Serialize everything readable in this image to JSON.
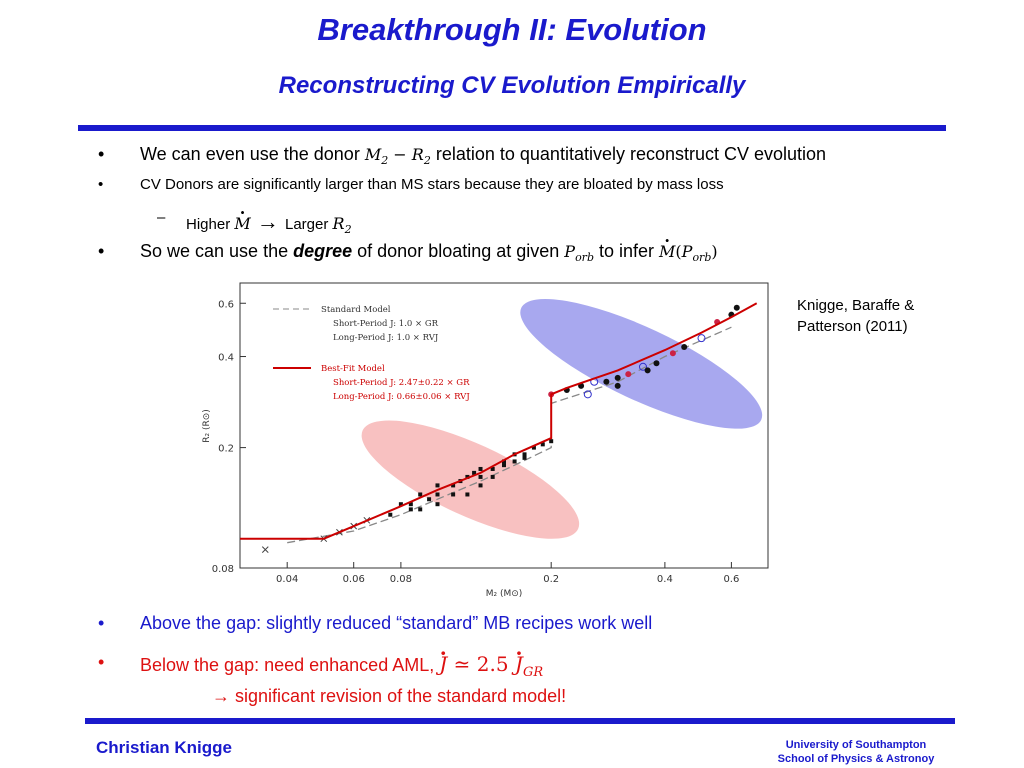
{
  "header": {
    "title": "Breakthrough II: Evolution",
    "subtitle": "Reconstructing CV Evolution Empirically"
  },
  "bullets": {
    "b1": {
      "marker": "•",
      "pre": "We can even use the donor ",
      "math_m": "M",
      "sub2": "2",
      "minus": " − ",
      "math_r": "R",
      "post": " relation to quantitatively reconstruct CV evolution"
    },
    "b2": {
      "marker": "•",
      "text": "CV Donors are significantly larger than MS stars because they are bloated by mass loss"
    },
    "b3": {
      "marker": "–",
      "pre": "Higher ",
      "math_mdot": "M",
      "arrow": " → ",
      "mid": "Larger ",
      "math_r": "R",
      "sub2": "2"
    },
    "b4": {
      "marker": "•",
      "pre": "So we can use the ",
      "emph": "degree",
      "mid": " of donor bloating at given ",
      "math_p": "P",
      "sub_orb": "orb",
      "post": " to infer ",
      "math_mdot": "M",
      "paren_open": "(",
      "paren_close": ")"
    },
    "b5": {
      "marker": "•",
      "text": "Above the gap: slightly reduced “standard” MB recipes work well"
    },
    "b6": {
      "marker": "•",
      "pre": "Below the gap: need enhanced AML, ",
      "math_j": "J",
      "approx": " ≃ 2.5 ",
      "sub_gr": "GR"
    },
    "b7": {
      "arrow": "→",
      "text": " significant revision of the standard model!"
    }
  },
  "reference": {
    "line1": "Knigge,  Baraffe &",
    "line2": "Patterson (2011)"
  },
  "chart_data": {
    "type": "scatter",
    "xlabel": "M₂ (M⊙)",
    "ylabel": "R₂ (R⊙)",
    "xscale": "log",
    "yscale": "log",
    "xlim": [
      0.03,
      0.75
    ],
    "ylim": [
      0.08,
      0.7
    ],
    "xticks": [
      "0.04",
      "0.06",
      "0.08",
      "0.2",
      "0.4",
      "0.6"
    ],
    "yticks": [
      "0.08",
      "0.2",
      "0.4",
      "0.6"
    ],
    "legend": {
      "standard_label": "Standard Model",
      "standard_sp": "Short-Period  J: 1.0 × GR",
      "standard_lp": "Long-Period  J: 1.0 × RVJ",
      "bestfit_label": "Best-Fit Model",
      "bestfit_sp": "Short-Period  J: 2.47±0.22 × GR",
      "bestfit_lp": "Long-Period  J: 0.66±0.06 × RVJ"
    },
    "colors": {
      "bestfit": "#cc0000",
      "standard": "#888888",
      "short_region": "#f4a0a0",
      "long_region": "#7a7ae6"
    },
    "series": [
      {
        "name": "Best-Fit Model",
        "x": [
          0.03,
          0.05,
          0.06,
          0.08,
          0.1,
          0.13,
          0.16,
          0.2,
          0.2,
          0.22,
          0.3,
          0.4,
          0.5,
          0.6,
          0.7
        ],
        "y": [
          0.1,
          0.1,
          0.11,
          0.128,
          0.145,
          0.165,
          0.19,
          0.215,
          0.3,
          0.315,
          0.36,
          0.42,
          0.48,
          0.54,
          0.6
        ]
      },
      {
        "name": "Standard Model",
        "x": [
          0.04,
          0.06,
          0.08,
          0.1,
          0.13,
          0.16,
          0.2,
          0.2,
          0.3,
          0.4,
          0.6
        ],
        "y": [
          0.097,
          0.106,
          0.12,
          0.135,
          0.155,
          0.175,
          0.2,
          0.28,
          0.33,
          0.4,
          0.5
        ]
      }
    ],
    "points_short": [
      [
        0.08,
        0.13
      ],
      [
        0.085,
        0.125
      ],
      [
        0.09,
        0.14
      ],
      [
        0.095,
        0.135
      ],
      [
        0.1,
        0.15
      ],
      [
        0.1,
        0.14
      ],
      [
        0.11,
        0.15
      ],
      [
        0.115,
        0.155
      ],
      [
        0.12,
        0.16
      ],
      [
        0.125,
        0.165
      ],
      [
        0.13,
        0.17
      ],
      [
        0.13,
        0.16
      ],
      [
        0.14,
        0.17
      ],
      [
        0.15,
        0.175
      ],
      [
        0.15,
        0.18
      ],
      [
        0.16,
        0.19
      ],
      [
        0.17,
        0.19
      ],
      [
        0.18,
        0.2
      ],
      [
        0.19,
        0.205
      ],
      [
        0.2,
        0.21
      ],
      [
        0.09,
        0.125
      ],
      [
        0.1,
        0.13
      ],
      [
        0.12,
        0.14
      ],
      [
        0.14,
        0.16
      ],
      [
        0.075,
        0.12
      ],
      [
        0.085,
        0.13
      ],
      [
        0.11,
        0.14
      ],
      [
        0.13,
        0.15
      ],
      [
        0.16,
        0.18
      ],
      [
        0.17,
        0.185
      ]
    ],
    "points_long": [
      [
        0.2,
        0.3
      ],
      [
        0.22,
        0.31
      ],
      [
        0.24,
        0.32
      ],
      [
        0.26,
        0.33
      ],
      [
        0.28,
        0.33
      ],
      [
        0.3,
        0.34
      ],
      [
        0.32,
        0.35
      ],
      [
        0.35,
        0.37
      ],
      [
        0.38,
        0.38
      ],
      [
        0.42,
        0.41
      ],
      [
        0.45,
        0.43
      ],
      [
        0.5,
        0.46
      ],
      [
        0.55,
        0.52
      ],
      [
        0.6,
        0.55
      ],
      [
        0.62,
        0.58
      ],
      [
        0.25,
        0.3
      ],
      [
        0.3,
        0.32
      ],
      [
        0.36,
        0.36
      ]
    ],
    "crosses": [
      [
        0.035,
        0.092
      ],
      [
        0.05,
        0.1
      ],
      [
        0.055,
        0.105
      ],
      [
        0.06,
        0.11
      ],
      [
        0.065,
        0.115
      ]
    ]
  },
  "footer": {
    "author": "Christian Knigge",
    "inst1": "University of Southampton",
    "inst2": "School of Physics & Astronoy"
  }
}
